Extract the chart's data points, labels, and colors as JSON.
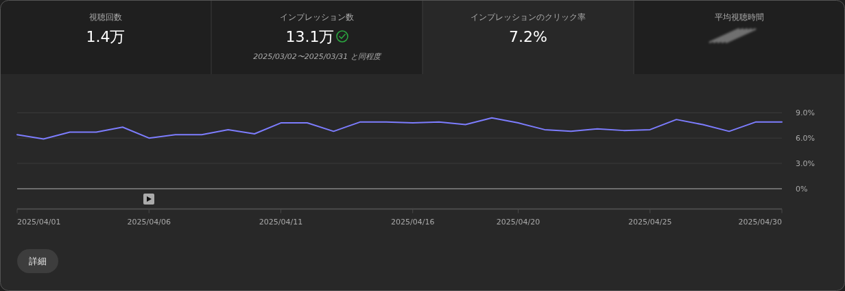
{
  "chart_data": [
    {
      "type": "other",
      "categories": [
        "視聴回数",
        "インプレッション数",
        "インプレッションのクリック率",
        "平均視聴時間"
      ],
      "value_labels": [
        "1.4万",
        "13.1万",
        "7.2%",
        null
      ],
      "annotations": [
        "2025/03/02〜2025/03/31 と同程度"
      ]
    },
    {
      "type": "line",
      "x": [
        "2025-04-01",
        "2025-04-02",
        "2025-04-03",
        "2025-04-04",
        "2025-04-05",
        "2025-04-06",
        "2025-04-07",
        "2025-04-08",
        "2025-04-09",
        "2025-04-10",
        "2025-04-11",
        "2025-04-12",
        "2025-04-13",
        "2025-04-14",
        "2025-04-15",
        "2025-04-16",
        "2025-04-17",
        "2025-04-18",
        "2025-04-19",
        "2025-04-20",
        "2025-04-21",
        "2025-04-22",
        "2025-04-23",
        "2025-04-24",
        "2025-04-25",
        "2025-04-26",
        "2025-04-27",
        "2025-04-28",
        "2025-04-29",
        "2025-04-30"
      ],
      "series": [
        {
          "color": "#7d7dff",
          "values": [
            6.4,
            5.9,
            6.7,
            6.7,
            7.3,
            6.0,
            6.4,
            6.4,
            7.0,
            6.5,
            7.8,
            7.8,
            6.8,
            7.9,
            7.9,
            7.8,
            7.9,
            7.6,
            8.4,
            7.8,
            7.0,
            6.8,
            7.1,
            6.9,
            7.0,
            8.2,
            7.6,
            6.8,
            7.9,
            7.9
          ]
        }
      ],
      "xlim": [
        "2025-04-01",
        "2025-04-30"
      ],
      "xticks": [
        {
          "value": "2025-04-01",
          "label": "2025/04/01"
        },
        {
          "value": "2025-04-06",
          "label": "2025/04/06"
        },
        {
          "value": "2025-04-11",
          "label": "2025/04/11"
        },
        {
          "value": "2025-04-16",
          "label": "2025/04/16"
        },
        {
          "value": "2025-04-20",
          "label": "2025/04/20"
        },
        {
          "value": "2025-04-25",
          "label": "2025/04/25"
        },
        {
          "value": "2025-04-30",
          "label": "2025/04/30"
        }
      ],
      "ylim": [
        -2.4,
        9
      ],
      "yticks": [
        {
          "value": 0,
          "label": "0%"
        },
        {
          "value": 3,
          "label": "3.0%"
        },
        {
          "value": 6,
          "label": "6.0%"
        },
        {
          "value": 9,
          "label": "9.0%"
        }
      ],
      "grid": "y",
      "annotations": [
        "詳細"
      ]
    }
  ]
}
